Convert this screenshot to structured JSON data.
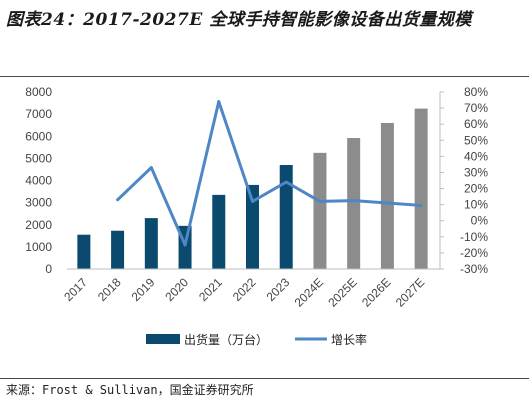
{
  "page": {
    "title": "图表24：2017-2027E 全球手持智能影像设备出货量规模",
    "source": "来源：Frost & Sullivan，国金证券研究所"
  },
  "chart_data": {
    "type": "bar",
    "title": "图表24：2017-2027E 全球手持智能影像设备出货量规模",
    "categories": [
      "2017",
      "2018",
      "2019",
      "2020",
      "2021",
      "2022",
      "2023",
      "2024E",
      "2025E",
      "2026E",
      "2027E"
    ],
    "series": [
      {
        "name": "出货量（万台）",
        "type": "bar",
        "axis": "left",
        "values": [
          1550,
          1730,
          2300,
          1950,
          3350,
          3800,
          4700,
          5250,
          5920,
          6600,
          7250
        ],
        "colors": [
          "#0b4a6f",
          "#0b4a6f",
          "#0b4a6f",
          "#0b4a6f",
          "#0b4a6f",
          "#0b4a6f",
          "#0b4a6f",
          "#8c8c8c",
          "#8c8c8c",
          "#8c8c8c",
          "#8c8c8c"
        ]
      },
      {
        "name": "增长率",
        "type": "line",
        "axis": "right",
        "color": "#4f86c6",
        "values": [
          null,
          0.13,
          0.33,
          -0.15,
          0.74,
          0.12,
          0.24,
          0.12,
          0.125,
          0.11,
          0.095
        ]
      }
    ],
    "y_left": {
      "min": 0,
      "max": 8000,
      "ticks": [
        0,
        1000,
        2000,
        3000,
        4000,
        5000,
        6000,
        7000,
        8000
      ],
      "tick_labels": [
        "0",
        "1000",
        "2000",
        "3000",
        "4000",
        "5000",
        "6000",
        "7000",
        "8000"
      ]
    },
    "y_right": {
      "min": -0.3,
      "max": 0.8,
      "ticks": [
        -0.3,
        -0.2,
        -0.1,
        0,
        0.1,
        0.2,
        0.3,
        0.4,
        0.5,
        0.6,
        0.7,
        0.8
      ],
      "tick_labels": [
        "-30%",
        "-20%",
        "-10%",
        "0%",
        "10%",
        "20%",
        "30%",
        "40%",
        "50%",
        "60%",
        "70%",
        "80%"
      ]
    },
    "grid": false,
    "legend_position": "bottom"
  }
}
